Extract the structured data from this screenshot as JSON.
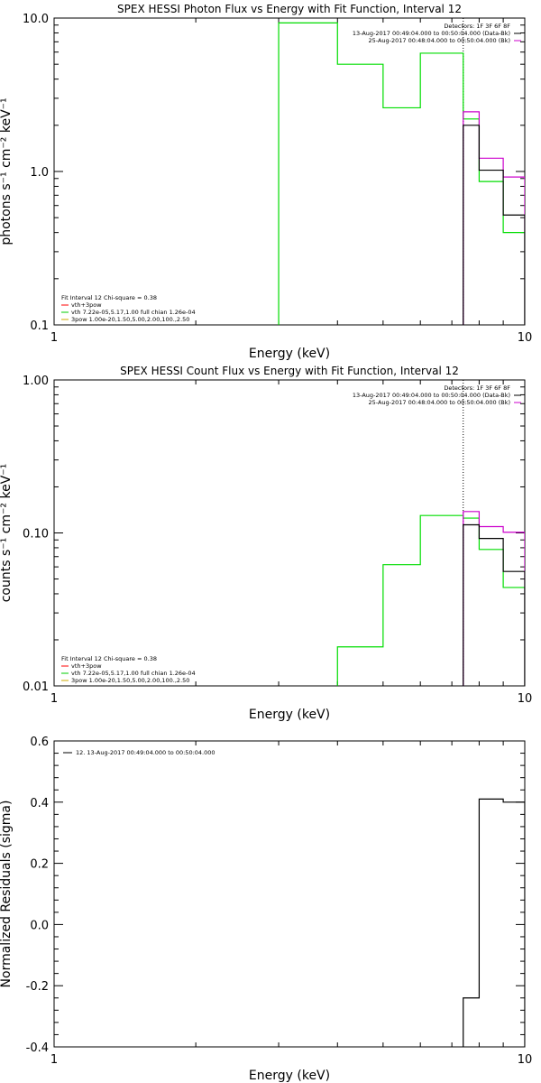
{
  "chart_data": [
    {
      "type": "line",
      "title": "SPEX HESSI Photon Flux vs Energy with Fit Function, Interval 12",
      "xlabel": "Energy (keV)",
      "ylabel": "photons s⁻¹ cm⁻² keV⁻¹",
      "xscale": "log",
      "yscale": "log",
      "xlim": [
        1,
        10
      ],
      "ylim": [
        0.1,
        10
      ],
      "xticks": [
        {
          "v": 1,
          "label": "1"
        },
        {
          "v": 10,
          "label": "10"
        }
      ],
      "yticks": [
        {
          "v": 0.1,
          "label": "0.1"
        },
        {
          "v": 1,
          "label": "1.0"
        },
        {
          "v": 10,
          "label": "10.0"
        }
      ],
      "vline": 7.4,
      "legend_right": [
        {
          "text": "Detectors: 1F 3F 6F 8F",
          "color": ""
        },
        {
          "text": "13-Aug-2017 00:49:04.000 to 00:50:04.000 (Data-Bk)",
          "color": "#000000"
        },
        {
          "text": "25-Aug-2017 00:48:04.000 to 00:50:04.000 (Bk)",
          "color": "#cc00cc"
        }
      ],
      "legend_left": [
        {
          "text": "Fit Interval 12   Chi-square = 0.38",
          "color": ""
        },
        {
          "text": "vth+3pow",
          "color": "#ff0000"
        },
        {
          "text": "vth 7.22e-05,5.17,1.00  full chian 1.26e-04",
          "color": "#00cc00"
        },
        {
          "text": "3pow 1.00e-20,1.50,5.00,2.00,100.,2.50",
          "color": "#ccaa00"
        }
      ],
      "series": [
        {
          "color": "#00dd00",
          "steps": [
            [
              3,
              4,
              9.3
            ],
            [
              4,
              5,
              5.0
            ],
            [
              5,
              6,
              2.6
            ],
            [
              6,
              7.4,
              5.9
            ],
            [
              7.4,
              8,
              2.2
            ],
            [
              8,
              9,
              0.86
            ],
            [
              9,
              10,
              0.4
            ]
          ]
        },
        {
          "color": "#cc00cc",
          "steps": [
            [
              7.4,
              8,
              2.45
            ],
            [
              8,
              9,
              1.22
            ],
            [
              9,
              10,
              0.92
            ]
          ]
        },
        {
          "color": "#000000",
          "steps": [
            [
              7.4,
              8,
              2.0
            ],
            [
              8,
              9,
              1.02
            ],
            [
              9,
              10,
              0.52
            ]
          ]
        }
      ]
    },
    {
      "type": "line",
      "title": "SPEX HESSI Count Flux vs Energy with Fit Function, Interval 12",
      "xlabel": "Energy (keV)",
      "ylabel": "counts s⁻¹ cm⁻² keV⁻¹",
      "xscale": "log",
      "yscale": "log",
      "xlim": [
        1,
        10
      ],
      "ylim": [
        0.01,
        1
      ],
      "xticks": [
        {
          "v": 1,
          "label": "1"
        },
        {
          "v": 10,
          "label": "10"
        }
      ],
      "yticks": [
        {
          "v": 0.01,
          "label": "0.01"
        },
        {
          "v": 0.1,
          "label": "0.10"
        },
        {
          "v": 1,
          "label": "1.00"
        }
      ],
      "vline": 7.4,
      "legend_right": [
        {
          "text": "Detectors: 1F 3F 6F 8F",
          "color": ""
        },
        {
          "text": "13-Aug-2017 00:49:04.000 to 00:50:04.000 (Data-Bk)",
          "color": "#000000"
        },
        {
          "text": "25-Aug-2017 00:48:04.000 to 00:50:04.000 (Bk)",
          "color": "#cc00cc"
        }
      ],
      "legend_left": [
        {
          "text": "Fit Interval 12   Chi-square = 0.38",
          "color": ""
        },
        {
          "text": "vth+3pow",
          "color": "#ff0000"
        },
        {
          "text": "vth 7.22e-05,5.17,1.00  full chian 1.26e-04",
          "color": "#00cc00"
        },
        {
          "text": "3pow 1.00e-20,1.50,5.00,2.00,100.,2.50",
          "color": "#ccaa00"
        }
      ],
      "series": [
        {
          "color": "#00dd00",
          "steps": [
            [
              4,
              5,
              0.018
            ],
            [
              5,
              6,
              0.062
            ],
            [
              6,
              7.4,
              0.13
            ],
            [
              7.4,
              8,
              0.125
            ],
            [
              8,
              9,
              0.078
            ],
            [
              9,
              10,
              0.044
            ]
          ]
        },
        {
          "color": "#cc00cc",
          "steps": [
            [
              7.4,
              8,
              0.138
            ],
            [
              8,
              9,
              0.11
            ],
            [
              9,
              10,
              0.101
            ]
          ]
        },
        {
          "color": "#000000",
          "steps": [
            [
              7.4,
              8,
              0.113
            ],
            [
              8,
              9,
              0.092
            ],
            [
              9,
              10,
              0.056
            ]
          ]
        }
      ]
    },
    {
      "type": "line",
      "title": "",
      "xlabel": "Energy (keV)",
      "ylabel": "Normalized Residuals (sigma)",
      "xscale": "log",
      "yscale": "linear",
      "xlim": [
        1,
        10
      ],
      "ylim": [
        -0.4,
        0.6
      ],
      "xticks": [
        {
          "v": 1,
          "label": "1"
        },
        {
          "v": 10,
          "label": "10"
        }
      ],
      "yticks": [
        {
          "v": -0.4,
          "label": "-0.4"
        },
        {
          "v": -0.2,
          "label": "-0.2"
        },
        {
          "v": 0,
          "label": "0.0"
        },
        {
          "v": 0.2,
          "label": "0.2"
        },
        {
          "v": 0.4,
          "label": "0.4"
        },
        {
          "v": 0.6,
          "label": "0.6"
        }
      ],
      "vline": null,
      "legend_right": [],
      "legend_left": [],
      "legend_top": [
        {
          "text": "12. 13-Aug-2017 00:49:04.000 to 00:50:04.000",
          "color": "#000000"
        }
      ],
      "series": [
        {
          "color": "#000000",
          "steps": [
            [
              7.4,
              8,
              -0.24
            ],
            [
              8,
              9,
              0.41
            ],
            [
              9,
              10,
              0.4
            ]
          ]
        }
      ]
    }
  ]
}
